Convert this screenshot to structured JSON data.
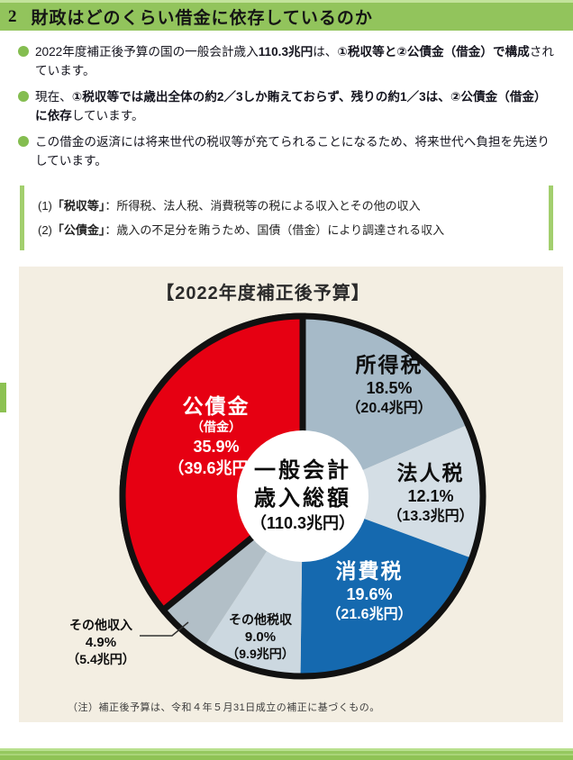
{
  "header": {
    "number": "2",
    "title": "財政はどのくらい借金に依存しているのか"
  },
  "bullets": [
    {
      "segments": [
        {
          "text": "2022年度補正後予算の国の一般会計歳入",
          "bold": false
        },
        {
          "text": "110.3兆円",
          "bold": true
        },
        {
          "text": "は、",
          "bold": false
        },
        {
          "text": "①税収等と②公債金（借金）で構成",
          "bold": true
        },
        {
          "text": "されています。",
          "bold": false
        }
      ]
    },
    {
      "segments": [
        {
          "text": "現在、",
          "bold": false
        },
        {
          "text": "①税収等では歳出全体の約2／3しか賄えておらず、残りの約1／3は、②公債金（借金）に依存",
          "bold": true
        },
        {
          "text": "しています。",
          "bold": false
        }
      ]
    },
    {
      "segments": [
        {
          "text": "この借金の返済には将来世代の税収等が充てられることになるため、将来世代へ負担を先送りしています。",
          "bold": false
        }
      ]
    }
  ],
  "definitions": {
    "lines": [
      {
        "prefix": "(1)",
        "term": "「税収等」",
        "rest": "：所得税、法人税、消費税等の税による収入とその他の収入"
      },
      {
        "prefix": "(2)",
        "term": "「公債金」",
        "rest": "：歳入の不足分を賄うため、国債（借金）により調達される収入"
      }
    ]
  },
  "chart_data": {
    "type": "pie",
    "title": "【2022年度補正後予算】",
    "direction": "clockwise",
    "start_angle_deg": 0,
    "total_trillion_yen": 110.3,
    "center_label": [
      "一般会計",
      "歳入総額",
      "（110.3兆円）"
    ],
    "slices": [
      {
        "id": "income-tax",
        "label": "所得税",
        "percent": 18.5,
        "percent_label": "18.5%",
        "amount": 20.4,
        "amount_label": "（20.4兆円）",
        "color": "#a6bac8",
        "text_color": "#0e0e0e",
        "outlined": false
      },
      {
        "id": "corporate-tax",
        "label": "法人税",
        "percent": 12.1,
        "percent_label": "12.1%",
        "amount": 13.3,
        "amount_label": "（13.3兆円）",
        "color": "#d4dee5",
        "text_color": "#0e0e0e",
        "outlined": false
      },
      {
        "id": "consumption-tax",
        "label": "消費税",
        "percent": 19.6,
        "percent_label": "19.6%",
        "amount": 21.6,
        "amount_label": "（21.6兆円）",
        "color": "#1569af",
        "text_color": "#ffffff",
        "outlined": false
      },
      {
        "id": "other-tax",
        "label": "その他税収",
        "percent": 9.0,
        "percent_label": "9.0%",
        "amount": 9.9,
        "amount_label": "（9.9兆円）",
        "color": "#ccd8e0",
        "text_color": "#0e0e0e",
        "outlined": false
      },
      {
        "id": "other-revenue",
        "label": "その他収入",
        "percent": 4.9,
        "percent_label": "4.9%",
        "amount": 5.4,
        "amount_label": "（5.4兆円）",
        "color": "#b2bfc7",
        "text_color": "#0e0e0e",
        "outlined": false
      },
      {
        "id": "government-bonds",
        "label": "公債金",
        "sublabel": "（借金）",
        "percent": 35.9,
        "percent_label": "35.9%",
        "amount": 39.6,
        "amount_label": "（39.6兆円）",
        "color": "#e60012",
        "text_color": "#ffffff",
        "outlined": true
      }
    ],
    "note": "（注）補正後予算は、令和４年５月31日成立の補正に基づくもの。",
    "legend": "none",
    "outline_color": "#111111",
    "center_circle_color": "#ffffff"
  },
  "palette": {
    "header_green": "#92c45c",
    "bullet_green": "#84bd50",
    "definition_bar_green": "#a2cf6e",
    "panel_cream": "#f3eee2",
    "bottom_bar_green": "#8fc355"
  }
}
